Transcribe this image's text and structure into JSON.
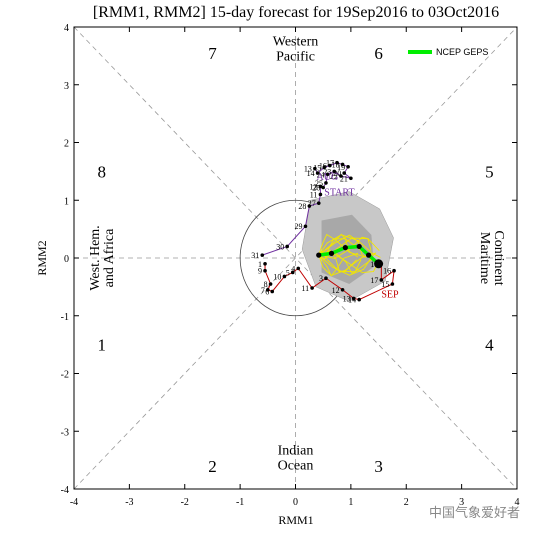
{
  "chart_data": {
    "type": "scatter",
    "title": "[RMM1, RMM2] 15-day forecast for 19Sep2016 to 03Oct2016",
    "xlabel": "RMM1",
    "ylabel": "RMM2",
    "xlim": [
      -4,
      4
    ],
    "ylim": [
      -4,
      4
    ],
    "x_ticks": [
      "-4",
      "-3",
      "-2",
      "-1",
      "0",
      "1",
      "2",
      "3",
      "4"
    ],
    "y_ticks": [
      "4",
      "3",
      "2",
      "1",
      "0",
      "-1",
      "-2",
      "-3",
      "-4"
    ],
    "phases": [
      {
        "label": "1",
        "x": -3.5,
        "y": -1.5
      },
      {
        "label": "2",
        "x": -1.5,
        "y": -3.6
      },
      {
        "label": "3",
        "x": 1.5,
        "y": -3.6
      },
      {
        "label": "4",
        "x": 3.5,
        "y": -1.5
      },
      {
        "label": "5",
        "x": 3.5,
        "y": 1.5
      },
      {
        "label": "6",
        "x": 1.5,
        "y": 3.55
      },
      {
        "label": "7",
        "x": -1.5,
        "y": 3.55
      },
      {
        "label": "8",
        "x": -3.5,
        "y": 1.5
      }
    ],
    "regions": {
      "top": [
        "Western",
        "Pacific"
      ],
      "bottom": [
        "Indian",
        "Ocean"
      ],
      "left": [
        "West. Hem.",
        "and Africa"
      ],
      "right": [
        "Maritime",
        "Continent"
      ]
    },
    "legend": {
      "label": "NCEP GEPS",
      "color": "#00ee00"
    },
    "month_labels": [
      {
        "text": "AUG",
        "x": 0.38,
        "y": 1.35,
        "color": "#7030a0"
      },
      {
        "text": "START",
        "x": 0.52,
        "y": 1.08,
        "color": "#7030a0"
      },
      {
        "text": "SEP",
        "x": 1.55,
        "y": -0.68,
        "color": "#c00000"
      }
    ],
    "series": [
      {
        "name": "AUG",
        "color": "#7030a0",
        "points": [
          {
            "day": "13",
            "x": 0.35,
            "y": 1.55
          },
          {
            "day": "14",
            "x": 0.4,
            "y": 1.47
          },
          {
            "day": "15",
            "x": 0.52,
            "y": 1.57
          },
          {
            "day": "16",
            "x": 0.62,
            "y": 1.6
          },
          {
            "day": "17",
            "x": 0.75,
            "y": 1.65
          },
          {
            "day": "18",
            "x": 0.85,
            "y": 1.62
          },
          {
            "day": "19",
            "x": 0.95,
            "y": 1.58
          },
          {
            "day": "20",
            "x": 0.88,
            "y": 1.47
          },
          {
            "day": "21",
            "x": 1.0,
            "y": 1.38
          },
          {
            "day": "22",
            "x": 0.82,
            "y": 1.42
          },
          {
            "day": "23",
            "x": 0.7,
            "y": 1.5
          },
          {
            "day": "24",
            "x": 0.58,
            "y": 1.45
          },
          {
            "day": "25",
            "x": 0.55,
            "y": 1.3
          },
          {
            "day": "26",
            "x": 0.5,
            "y": 1.22
          },
          {
            "day": "12",
            "x": 0.45,
            "y": 1.24
          },
          {
            "day": "11",
            "x": 0.45,
            "y": 1.1
          },
          {
            "day": "27",
            "x": 0.42,
            "y": 0.95
          },
          {
            "day": "28",
            "x": 0.25,
            "y": 0.9
          },
          {
            "day": "29",
            "x": 0.18,
            "y": 0.55
          },
          {
            "day": "30",
            "x": -0.15,
            "y": 0.2
          },
          {
            "day": "31",
            "x": -0.6,
            "y": 0.05
          }
        ]
      },
      {
        "name": "SEP",
        "color": "#c00000",
        "points": [
          {
            "day": "1",
            "x": -0.55,
            "y": -0.1
          },
          {
            "day": "9",
            "x": -0.55,
            "y": -0.22
          },
          {
            "day": "8",
            "x": -0.45,
            "y": -0.45
          },
          {
            "day": "7",
            "x": -0.5,
            "y": -0.55
          },
          {
            "day": "6",
            "x": -0.42,
            "y": -0.58
          },
          {
            "day": "10",
            "x": -0.2,
            "y": -0.32
          },
          {
            "day": "5",
            "x": -0.05,
            "y": -0.25
          },
          {
            "day": "4",
            "x": 0.05,
            "y": -0.18
          },
          {
            "day": "11",
            "x": 0.3,
            "y": -0.52
          },
          {
            "day": "3",
            "x": 0.55,
            "y": -0.35
          },
          {
            "day": "12",
            "x": 0.85,
            "y": -0.55
          },
          {
            "day": "13",
            "x": 1.05,
            "y": -0.7
          },
          {
            "day": "14",
            "x": 1.15,
            "y": -0.72
          },
          {
            "day": "15",
            "x": 1.75,
            "y": -0.45
          },
          {
            "day": "16",
            "x": 1.78,
            "y": -0.22
          },
          {
            "day": "17",
            "x": 1.55,
            "y": -0.38
          },
          {
            "day": "18",
            "x": 1.55,
            "y": -0.1
          }
        ]
      },
      {
        "name": "NCEP GEPS",
        "color": "#00ee00",
        "points": [
          {
            "x": 0.42,
            "y": 0.05
          },
          {
            "x": 0.65,
            "y": 0.08
          },
          {
            "x": 0.9,
            "y": 0.18
          },
          {
            "x": 1.15,
            "y": 0.2
          },
          {
            "x": 1.32,
            "y": 0.05
          },
          {
            "x": 1.5,
            "y": -0.1
          }
        ]
      }
    ]
  },
  "watermark": "中国气象爱好者"
}
